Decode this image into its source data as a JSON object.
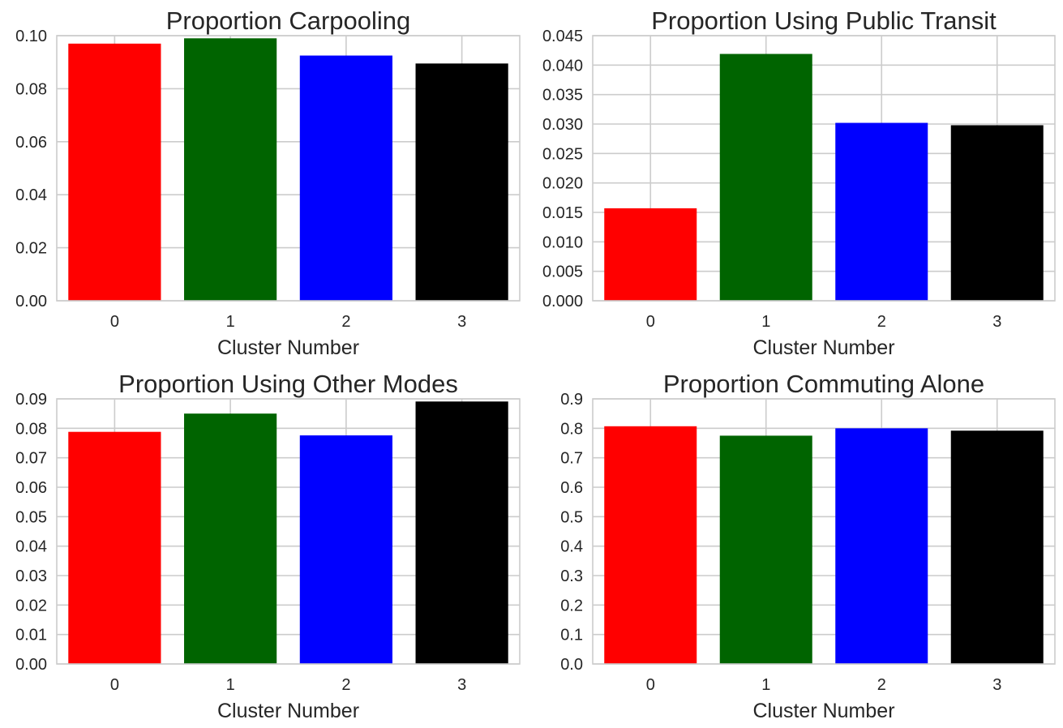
{
  "chart_data": [
    {
      "type": "bar",
      "title": "Proportion Carpooling",
      "xlabel": "Cluster Number",
      "ylabel": "",
      "categories": [
        "0",
        "1",
        "2",
        "3"
      ],
      "values": [
        0.097,
        0.099,
        0.0925,
        0.0895
      ],
      "colors": [
        "#ff0000",
        "#006400",
        "#0000ff",
        "#000000"
      ],
      "ylim": [
        0,
        0.1
      ],
      "yticks": [
        "0.00",
        "0.02",
        "0.04",
        "0.06",
        "0.08",
        "0.10"
      ],
      "grid": true
    },
    {
      "type": "bar",
      "title": "Proportion Using Public Transit",
      "xlabel": "Cluster Number",
      "ylabel": "",
      "categories": [
        "0",
        "1",
        "2",
        "3"
      ],
      "values": [
        0.0157,
        0.0419,
        0.0302,
        0.0298
      ],
      "colors": [
        "#ff0000",
        "#006400",
        "#0000ff",
        "#000000"
      ],
      "ylim": [
        0,
        0.045
      ],
      "yticks": [
        "0.000",
        "0.005",
        "0.010",
        "0.015",
        "0.020",
        "0.025",
        "0.030",
        "0.035",
        "0.040",
        "0.045"
      ],
      "grid": true
    },
    {
      "type": "bar",
      "title": "Proportion Using Other Modes",
      "xlabel": "Cluster Number",
      "ylabel": "",
      "categories": [
        "0",
        "1",
        "2",
        "3"
      ],
      "values": [
        0.0788,
        0.085,
        0.0776,
        0.0891
      ],
      "colors": [
        "#ff0000",
        "#006400",
        "#0000ff",
        "#000000"
      ],
      "ylim": [
        0,
        0.09
      ],
      "yticks": [
        "0.00",
        "0.01",
        "0.02",
        "0.03",
        "0.04",
        "0.05",
        "0.06",
        "0.07",
        "0.08",
        "0.09"
      ],
      "grid": true
    },
    {
      "type": "bar",
      "title": "Proportion Commuting Alone",
      "xlabel": "Cluster Number",
      "ylabel": "",
      "categories": [
        "0",
        "1",
        "2",
        "3"
      ],
      "values": [
        0.807,
        0.775,
        0.8,
        0.792
      ],
      "colors": [
        "#ff0000",
        "#006400",
        "#0000ff",
        "#000000"
      ],
      "ylim": [
        0,
        0.9
      ],
      "yticks": [
        "0.0",
        "0.1",
        "0.2",
        "0.3",
        "0.4",
        "0.5",
        "0.6",
        "0.7",
        "0.8",
        "0.9"
      ],
      "grid": true
    }
  ]
}
